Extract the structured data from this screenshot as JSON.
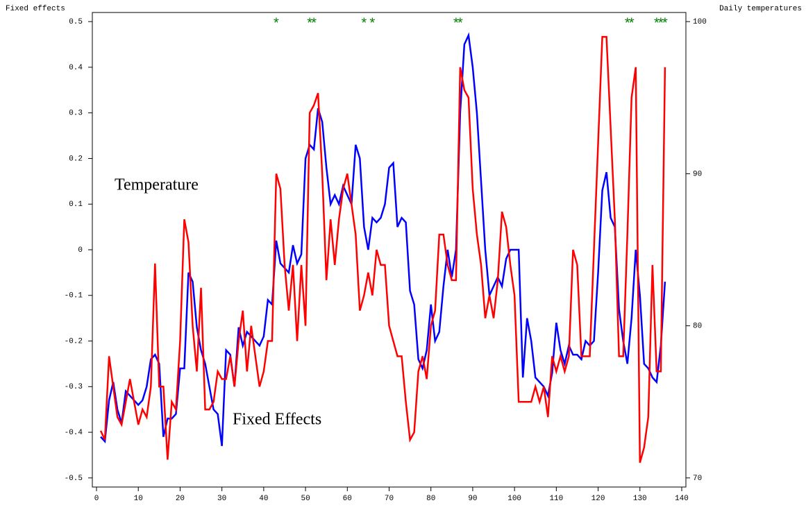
{
  "chart_data": {
    "type": "line",
    "ylabel": "Fixed effects",
    "y2label": "Daily temperatures",
    "annotations": [
      "Temperature",
      "Fixed Effects"
    ],
    "xlim": [
      -1,
      141
    ],
    "xticks": [
      0,
      10,
      20,
      30,
      40,
      50,
      60,
      70,
      80,
      90,
      100,
      110,
      120,
      130,
      140
    ],
    "ylim": [
      -0.52,
      0.52
    ],
    "yticks": [
      -0.5,
      -0.4,
      -0.3,
      -0.2,
      -0.1,
      0,
      0.1,
      0.2,
      0.3,
      0.4,
      0.5
    ],
    "y2lim": [
      69.4,
      100.6
    ],
    "y2ticks": [
      70,
      80,
      90,
      100
    ],
    "x": [
      1,
      2,
      3,
      4,
      5,
      6,
      7,
      8,
      9,
      10,
      11,
      12,
      13,
      14,
      15,
      16,
      17,
      18,
      19,
      20,
      21,
      22,
      23,
      24,
      25,
      26,
      27,
      28,
      29,
      30,
      31,
      32,
      33,
      34,
      35,
      36,
      37,
      38,
      39,
      40,
      41,
      42,
      43,
      44,
      45,
      46,
      47,
      48,
      49,
      50,
      51,
      52,
      53,
      54,
      55,
      56,
      57,
      58,
      59,
      60,
      61,
      62,
      63,
      64,
      65,
      66,
      67,
      68,
      69,
      70,
      71,
      72,
      73,
      74,
      75,
      76,
      77,
      78,
      79,
      80,
      81,
      82,
      83,
      84,
      85,
      86,
      87,
      88,
      89,
      90,
      91,
      92,
      93,
      94,
      95,
      96,
      97,
      98,
      99,
      100,
      101,
      102,
      103,
      104,
      105,
      106,
      107,
      108,
      109,
      110,
      111,
      112,
      113,
      114,
      115,
      116,
      117,
      118,
      119,
      120,
      121,
      122,
      123,
      124,
      125,
      126,
      127,
      128,
      129,
      130,
      131,
      132,
      133,
      134,
      135,
      136
    ],
    "series": [
      {
        "name": "Fixed Effects",
        "color": "#0000ff",
        "axis": "y",
        "values": [
          -0.41,
          -0.42,
          -0.33,
          -0.29,
          -0.35,
          -0.38,
          -0.31,
          -0.32,
          -0.33,
          -0.34,
          -0.33,
          -0.3,
          -0.24,
          -0.23,
          -0.25,
          -0.41,
          -0.37,
          -0.37,
          -0.36,
          -0.26,
          -0.26,
          -0.05,
          -0.07,
          -0.17,
          -0.22,
          -0.25,
          -0.3,
          -0.35,
          -0.36,
          -0.43,
          -0.22,
          -0.23,
          -0.3,
          -0.17,
          -0.21,
          -0.18,
          -0.19,
          -0.2,
          -0.21,
          -0.19,
          -0.11,
          -0.12,
          0.02,
          -0.03,
          -0.04,
          -0.05,
          0.01,
          -0.03,
          -0.01,
          0.2,
          0.23,
          0.22,
          0.31,
          0.28,
          0.18,
          0.1,
          0.12,
          0.1,
          0.14,
          0.12,
          0.1,
          0.23,
          0.2,
          0.05,
          0,
          0.07,
          0.06,
          0.07,
          0.1,
          0.18,
          0.19,
          0.05,
          0.07,
          0.06,
          -0.09,
          -0.12,
          -0.24,
          -0.26,
          -0.22,
          -0.12,
          -0.2,
          -0.18,
          -0.08,
          0,
          -0.06,
          0,
          0.3,
          0.45,
          0.47,
          0.4,
          0.3,
          0.15,
          0,
          -0.1,
          -0.08,
          -0.06,
          -0.08,
          -0.02,
          0,
          0,
          0,
          -0.28,
          -0.15,
          -0.2,
          -0.28,
          -0.29,
          -0.3,
          -0.32,
          -0.27,
          -0.16,
          -0.22,
          -0.25,
          -0.21,
          -0.23,
          -0.23,
          -0.24,
          -0.2,
          -0.21,
          -0.2,
          -0.05,
          0.13,
          0.17,
          0.07,
          0.05,
          -0.13,
          -0.2,
          -0.25,
          -0.15,
          0,
          -0.1,
          -0.25,
          -0.26,
          -0.28,
          -0.29,
          -0.21,
          -0.07
        ]
      },
      {
        "name": "Temperature",
        "color": "#ff0000",
        "axis": "y2",
        "values": [
          73.1,
          72.5,
          78,
          76,
          74,
          73.5,
          75,
          76.5,
          75,
          73.5,
          74.5,
          74,
          76,
          84.1,
          76,
          76,
          71.2,
          75,
          74.5,
          79,
          87,
          85.5,
          80,
          77,
          82.5,
          74.5,
          74.5,
          75,
          77,
          76.5,
          76.5,
          78,
          76,
          79,
          81,
          77,
          80,
          78,
          76,
          77,
          79,
          79,
          90,
          89,
          84,
          81,
          84,
          79,
          84,
          80,
          94,
          94.5,
          95.3,
          90,
          83,
          87,
          84,
          87,
          89,
          90,
          88,
          86,
          81,
          82,
          83.5,
          82,
          85,
          84,
          84,
          80,
          79,
          78,
          78,
          75,
          72.5,
          73,
          77,
          78,
          76.5,
          80,
          81,
          86,
          86,
          84,
          83,
          83,
          97,
          95.5,
          95,
          89,
          86,
          84,
          80.5,
          82,
          80.5,
          83,
          87.5,
          86.5,
          84,
          82,
          75,
          75,
          75,
          75,
          76,
          75,
          76,
          74,
          78,
          77,
          78,
          77,
          78,
          85,
          84,
          78,
          78,
          78,
          85,
          92,
          99,
          99,
          93,
          87,
          78,
          78,
          86,
          95,
          97,
          71,
          72,
          74,
          84,
          77,
          77,
          97
        ]
      }
    ],
    "significance": {
      "marker": "*",
      "color": "#008000",
      "x": [
        43,
        51,
        52,
        64,
        66,
        86,
        87,
        127,
        128,
        134,
        135,
        136
      ],
      "values": [
        0.5,
        0.5,
        0.5,
        0.5,
        0.5,
        0.5,
        0.5,
        0.5,
        0.5,
        0.5,
        0.5,
        0.5
      ]
    }
  }
}
